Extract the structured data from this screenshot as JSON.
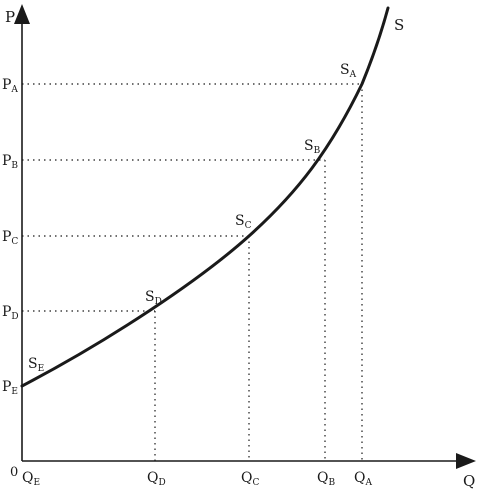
{
  "axes": {
    "y_label": "P",
    "x_label": "Q",
    "origin_label": "0"
  },
  "curve": {
    "label": "S"
  },
  "points": [
    {
      "id": "A",
      "point": {
        "main": "S",
        "sub": "A"
      },
      "price": {
        "main": "P",
        "sub": "A"
      },
      "quantity": {
        "main": "Q",
        "sub": "A"
      }
    },
    {
      "id": "B",
      "point": {
        "main": "S",
        "sub": "B"
      },
      "price": {
        "main": "P",
        "sub": "B"
      },
      "quantity": {
        "main": "Q",
        "sub": "B"
      }
    },
    {
      "id": "C",
      "point": {
        "main": "S",
        "sub": "C"
      },
      "price": {
        "main": "P",
        "sub": "C"
      },
      "quantity": {
        "main": "Q",
        "sub": "C"
      }
    },
    {
      "id": "D",
      "point": {
        "main": "S",
        "sub": "D"
      },
      "price": {
        "main": "P",
        "sub": "D"
      },
      "quantity": {
        "main": "Q",
        "sub": "D"
      }
    },
    {
      "id": "E",
      "point": {
        "main": "S",
        "sub": "E"
      },
      "price": {
        "main": "P",
        "sub": "E"
      },
      "quantity": {
        "main": "Q",
        "sub": "E"
      }
    }
  ]
}
